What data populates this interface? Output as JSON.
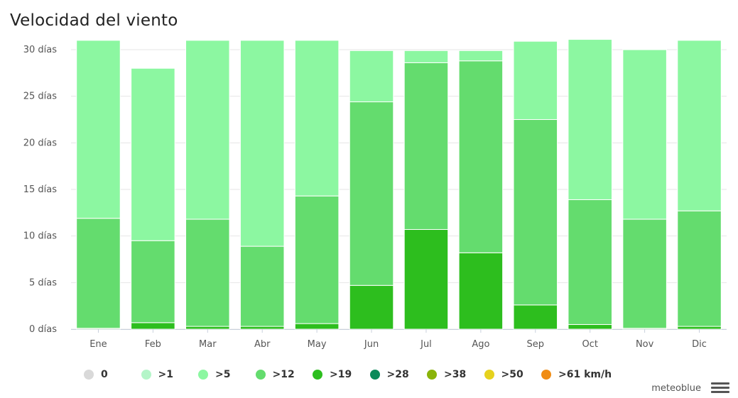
{
  "title": "Velocidad del viento",
  "credit": "meteoblue",
  "colors": {
    "0": "#d9d9d9",
    "gt1": "#b4f5c8",
    "gt5": "#8cf7a1",
    "gt12": "#64dc6e",
    "gt19": "#2dbe1e",
    "gt28": "#0b8a5a",
    "gt38": "#8ab40a",
    "gt50": "#e6d21e",
    "gt61": "#f08c14"
  },
  "legend": [
    {
      "key": "0",
      "label": "0"
    },
    {
      "key": "gt1",
      "label": ">1"
    },
    {
      "key": "gt5",
      "label": ">5"
    },
    {
      "key": "gt12",
      "label": ">12"
    },
    {
      "key": "gt19",
      "label": ">19"
    },
    {
      "key": "gt28",
      "label": ">28"
    },
    {
      "key": "gt38",
      "label": ">38"
    },
    {
      "key": "gt50",
      "label": ">50"
    },
    {
      "key": "gt61",
      "label": ">61 km/h"
    }
  ],
  "chart_data": {
    "type": "bar",
    "stacked": true,
    "title": "Velocidad del viento",
    "categories": [
      "Ene",
      "Feb",
      "Mar",
      "Abr",
      "May",
      "Jun",
      "Jul",
      "Ago",
      "Sep",
      "Oct",
      "Nov",
      "Dic"
    ],
    "ylim": [
      0,
      30
    ],
    "yticks": [
      0,
      5,
      10,
      15,
      20,
      25,
      30
    ],
    "ytick_labels": [
      "0 días",
      "5 días",
      "10 días",
      "15 días",
      "20 días",
      "25 días",
      "30 días"
    ],
    "grid": true,
    "legend_position": "bottom",
    "series": [
      {
        "name": ">19",
        "key": "gt19",
        "values": [
          0.1,
          0.7,
          0.3,
          0.3,
          0.6,
          4.7,
          10.7,
          8.2,
          2.6,
          0.5,
          0.1,
          0.3
        ]
      },
      {
        "name": ">12",
        "key": "gt12",
        "values": [
          11.8,
          8.8,
          11.5,
          8.6,
          13.7,
          19.7,
          17.9,
          20.6,
          19.9,
          13.4,
          11.7,
          12.4
        ]
      },
      {
        "name": ">5",
        "key": "gt5",
        "values": [
          19.1,
          18.5,
          19.2,
          22.1,
          16.7,
          5.5,
          1.3,
          1.1,
          8.4,
          17.2,
          18.2,
          18.3
        ]
      }
    ]
  }
}
